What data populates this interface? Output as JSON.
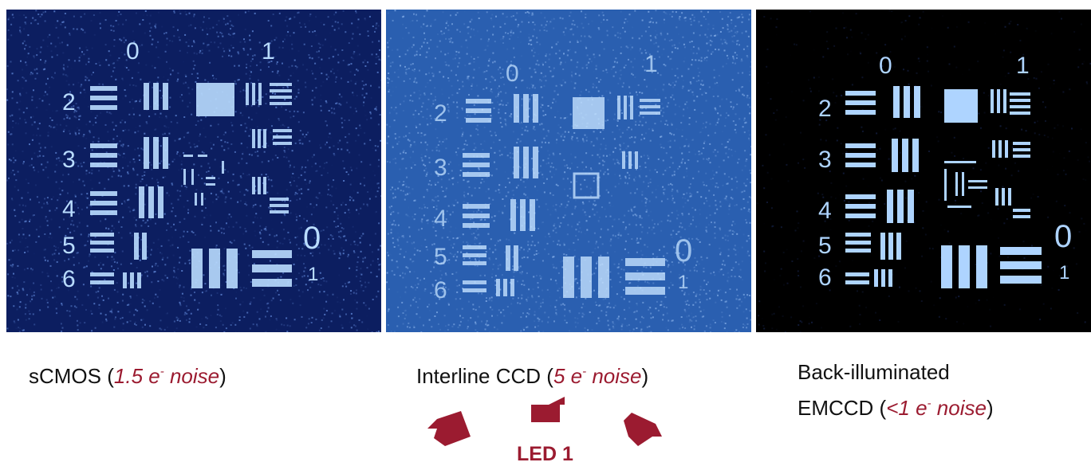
{
  "panels": [
    {
      "name": "sCMOS",
      "caption_label": "sCMOS (",
      "caption_value": "1.5 e",
      "caption_sup": "-",
      "caption_unit": " noise",
      "caption_close": ")",
      "numbers_top": [
        "0",
        "1"
      ],
      "numbers_left": [
        "2",
        "3",
        "4",
        "5",
        "6"
      ],
      "numbers_right": [
        "0",
        "1"
      ],
      "colors": {
        "bg": "#0c1e60",
        "fg": "#b9dcff"
      }
    },
    {
      "name": "Interline CCD",
      "caption_label": "Interline CCD (",
      "caption_value": "5 e",
      "caption_sup": "-",
      "caption_unit": " noise",
      "caption_close": ")",
      "numbers_top": [
        "0",
        "1"
      ],
      "numbers_left": [
        "2",
        "3",
        "4",
        "5",
        "6"
      ],
      "numbers_right": [
        "0",
        "1"
      ],
      "colors": {
        "bg": "#2a5fb0",
        "fg": "#c4e2ff"
      }
    },
    {
      "name": "Back-illuminated EMCCD",
      "caption_line1": "Back-illuminated",
      "caption_label": "EMCCD (",
      "caption_value": "<1 e",
      "caption_sup": "-",
      "caption_unit": " noise",
      "caption_close": ")",
      "numbers_top": [
        "0",
        "1"
      ],
      "numbers_left": [
        "2",
        "3",
        "4",
        "5",
        "6"
      ],
      "numbers_right": [
        "0",
        "1"
      ],
      "colors": {
        "bg": "#000000",
        "fg": "#aed4ff"
      }
    }
  ],
  "led_label": "LED 1",
  "accent_color": "#9b1b30"
}
